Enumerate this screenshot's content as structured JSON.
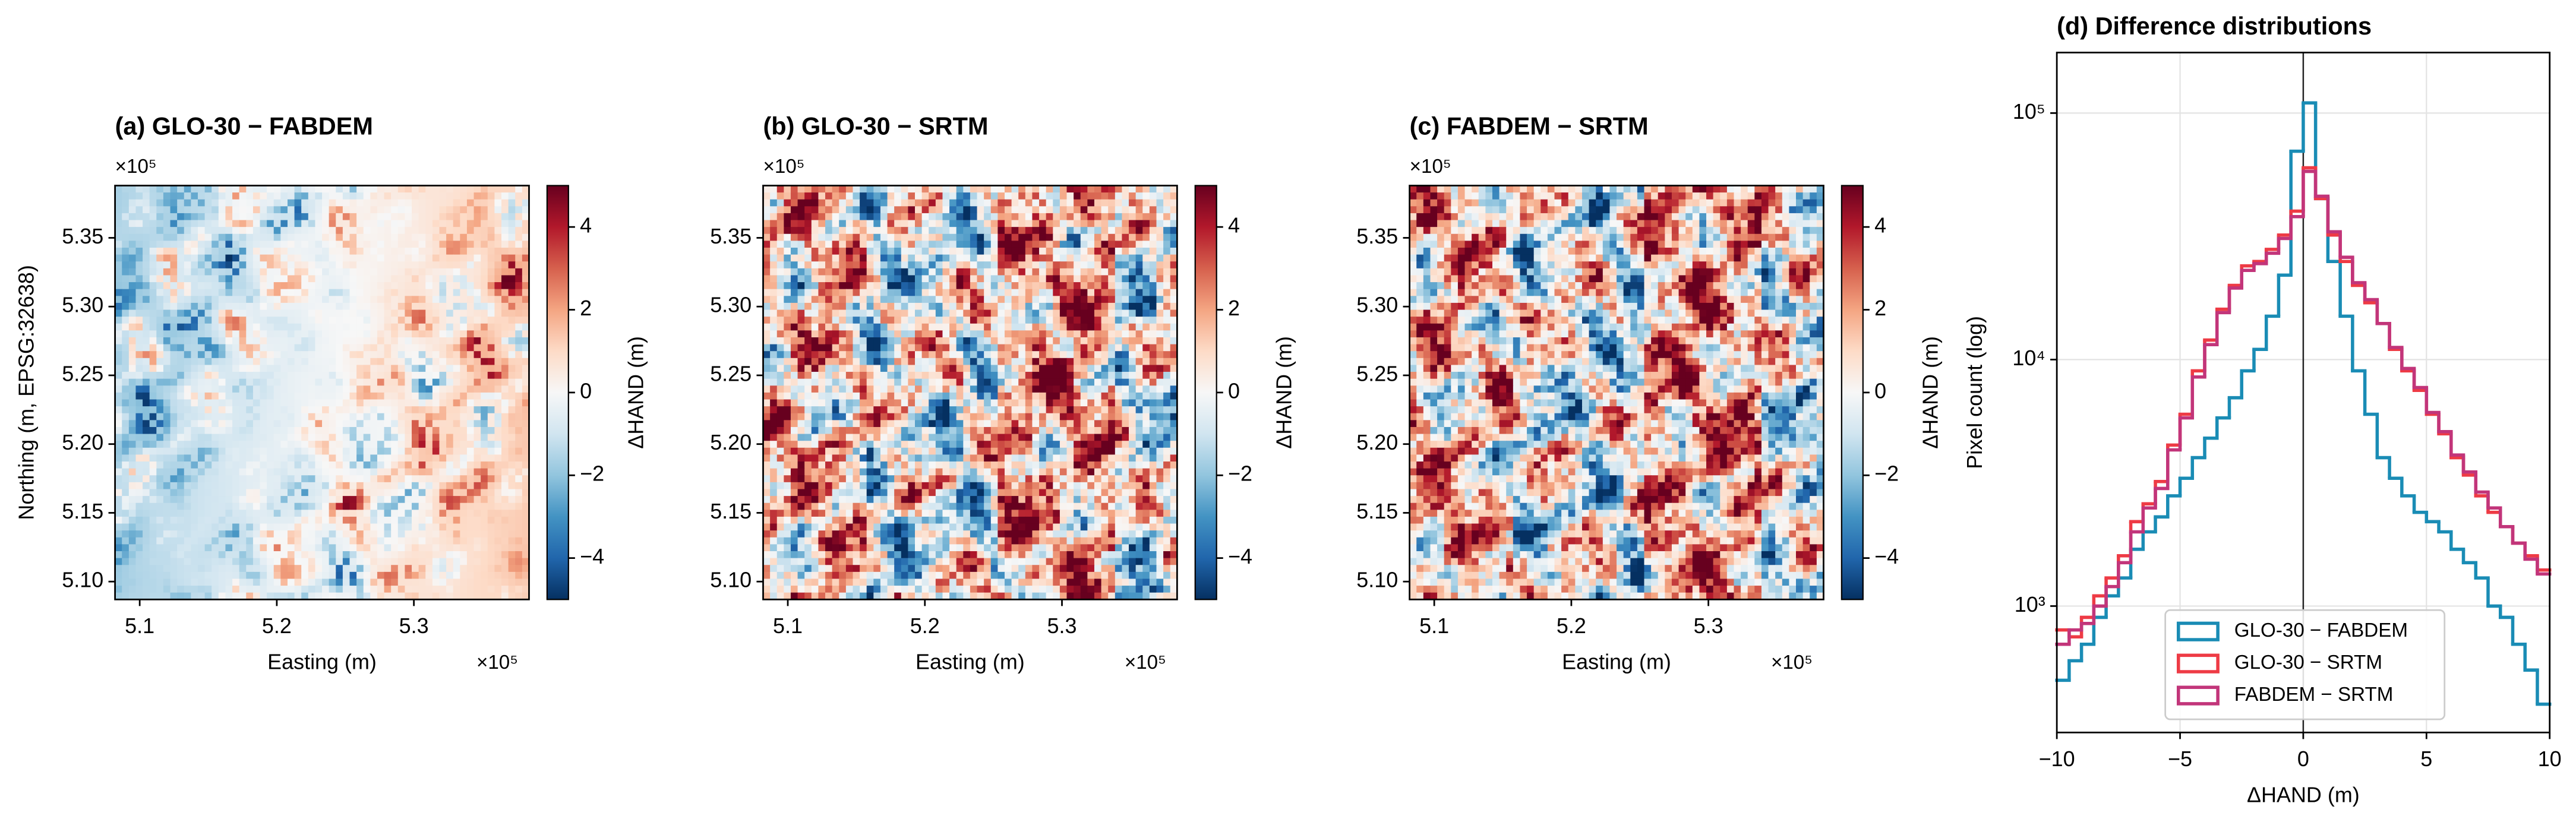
{
  "chart_data": [
    {
      "type": "heatmap",
      "title": "(a) GLO-30 − FABDEM",
      "xlabel": "Easting (m)",
      "ylabel": "Northing (m, EPSG:32638)",
      "x_offset_label": "×10⁵",
      "y_offset_label": "×10⁵",
      "xlim": [
        5.082,
        5.384
      ],
      "ylim": [
        5.087,
        5.388
      ],
      "xticks": [
        5.1,
        5.2,
        5.3
      ],
      "yticks": [
        {
          "value": 5.1,
          "label": "5.10"
        },
        5.15,
        {
          "value": 5.2,
          "label": "5.20"
        },
        5.25,
        {
          "value": 5.3,
          "label": "5.30"
        },
        5.35
      ],
      "colorbar": {
        "label": "ΔHAND (m)",
        "lim": [
          -5,
          5
        ],
        "ticks": [
          {
            "value": -4,
            "label": "−4"
          },
          {
            "value": -2,
            "label": "−2"
          },
          0,
          2,
          4
        ]
      }
    },
    {
      "type": "heatmap",
      "title": "(b) GLO-30 − SRTM",
      "xlabel": "Easting (m)",
      "x_offset_label": "×10⁵",
      "y_offset_label": "×10⁵",
      "xlim": [
        5.082,
        5.384
      ],
      "ylim": [
        5.087,
        5.388
      ],
      "xticks": [
        5.1,
        5.2,
        5.3
      ],
      "yticks": [
        {
          "value": 5.1,
          "label": "5.10"
        },
        5.15,
        {
          "value": 5.2,
          "label": "5.20"
        },
        5.25,
        {
          "value": 5.3,
          "label": "5.30"
        },
        5.35
      ],
      "colorbar": {
        "label": "ΔHAND (m)",
        "lim": [
          -5,
          5
        ],
        "ticks": [
          {
            "value": -4,
            "label": "−4"
          },
          {
            "value": -2,
            "label": "−2"
          },
          0,
          2,
          4
        ]
      }
    },
    {
      "type": "heatmap",
      "title": "(c) FABDEM − SRTM",
      "xlabel": "Easting (m)",
      "x_offset_label": "×10⁵",
      "y_offset_label": "×10⁵",
      "xlim": [
        5.082,
        5.384
      ],
      "ylim": [
        5.087,
        5.388
      ],
      "xticks": [
        5.1,
        5.2,
        5.3
      ],
      "yticks": [
        {
          "value": 5.1,
          "label": "5.10"
        },
        5.15,
        {
          "value": 5.2,
          "label": "5.20"
        },
        5.25,
        {
          "value": 5.3,
          "label": "5.30"
        },
        5.35
      ],
      "colorbar": {
        "label": "ΔHAND (m)",
        "lim": [
          -5,
          5
        ],
        "ticks": [
          {
            "value": -4,
            "label": "−4"
          },
          {
            "value": -2,
            "label": "−2"
          },
          0,
          2,
          4
        ]
      }
    },
    {
      "type": "histogram",
      "title": "(d) Difference distributions",
      "xlabel": "ΔHAND (m)",
      "ylabel": "Pixel count (log)",
      "xlim": [
        -10,
        10
      ],
      "ylim": [
        307,
        176000
      ],
      "yscale": "log",
      "grid": true,
      "legend": "lower center",
      "xticks": [
        {
          "value": -10,
          "label": "−10"
        },
        {
          "value": -5,
          "label": "−5"
        },
        0,
        5,
        10
      ],
      "yticks": [
        {
          "value": 1000,
          "label": "10³"
        },
        {
          "value": 10000,
          "label": "10⁴"
        },
        {
          "value": 100000,
          "label": "10⁵"
        }
      ],
      "bins": [
        -10,
        -9.5,
        -9,
        -8.5,
        -8,
        -7.5,
        -7,
        -6.5,
        -6,
        -5.5,
        -5,
        -4.5,
        -4,
        -3.5,
        -3,
        -2.5,
        -2,
        -1.5,
        -1,
        -0.5,
        0,
        0.5,
        1,
        1.5,
        2,
        2.5,
        3,
        3.5,
        4,
        4.5,
        5,
        5.5,
        6,
        6.5,
        7,
        7.5,
        8,
        8.5,
        9,
        9.5,
        10
      ],
      "series": [
        {
          "name": "GLO-30 − FABDEM",
          "color": "#1a8cb5",
          "values": [
            500,
            600,
            700,
            900,
            1100,
            1300,
            1700,
            2000,
            2300,
            2800,
            3300,
            4000,
            4800,
            5800,
            7000,
            9000,
            11000,
            15000,
            22000,
            70000,
            110000,
            45000,
            25000,
            15000,
            9000,
            6000,
            4000,
            3300,
            2800,
            2400,
            2200,
            2000,
            1700,
            1500,
            1300,
            1000,
            900,
            700,
            550,
            400
          ]
        },
        {
          "name": "GLO-30 − SRTM",
          "color": "#ee3b45",
          "values": [
            800,
            750,
            900,
            1100,
            1300,
            1600,
            2200,
            2600,
            3200,
            4500,
            6000,
            9000,
            12000,
            16000,
            20000,
            24000,
            25000,
            28000,
            32000,
            40000,
            60000,
            45000,
            32000,
            25000,
            20000,
            17000,
            14000,
            11000,
            9000,
            7500,
            6000,
            5000,
            4000,
            3400,
            2800,
            2400,
            2100,
            1800,
            1600,
            1400
          ]
        },
        {
          "name": "FABDEM − SRTM",
          "color": "#c2357a",
          "values": [
            700,
            800,
            850,
            1000,
            1200,
            1500,
            2000,
            2500,
            3000,
            4300,
            5800,
            8500,
            11500,
            15500,
            19500,
            23000,
            24500,
            27000,
            31000,
            38000,
            58000,
            46000,
            33000,
            26000,
            20500,
            17500,
            14000,
            11200,
            9200,
            7700,
            6100,
            5100,
            4100,
            3500,
            2900,
            2500,
            2100,
            1800,
            1550,
            1350
          ]
        }
      ]
    }
  ]
}
